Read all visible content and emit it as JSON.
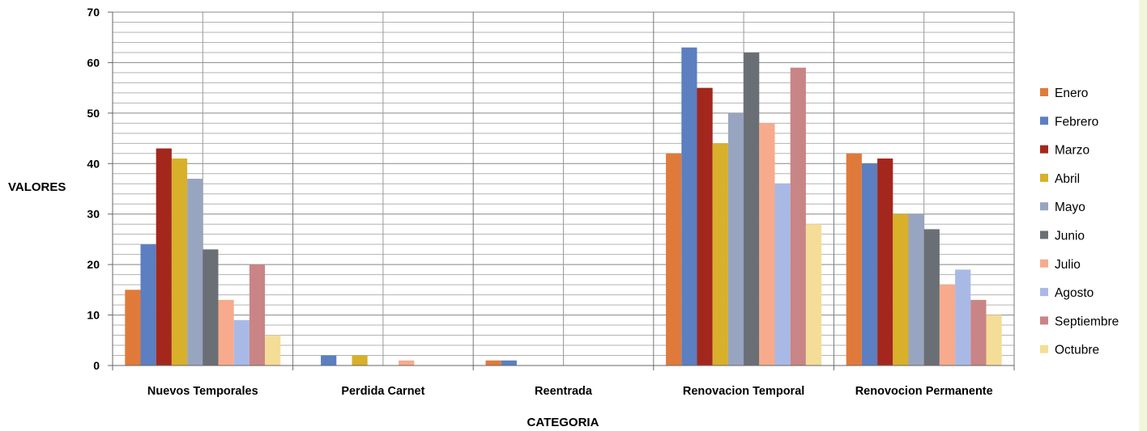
{
  "chart_data": {
    "type": "bar",
    "xlabel": "CATEGORIA",
    "ylabel": "VALORES",
    "ylim": [
      0,
      70
    ],
    "yticks": [
      0,
      10,
      20,
      30,
      40,
      50,
      60,
      70
    ],
    "grid": true,
    "legend_position": "right",
    "categories": [
      "Nuevos Temporales",
      "Perdida Carnet",
      "Reentrada",
      "Renovacion Temporal",
      "Renovocion Permanente"
    ],
    "series": [
      {
        "name": "Enero",
        "color": "#e07a3a",
        "values": [
          15,
          0,
          1,
          42,
          42
        ]
      },
      {
        "name": "Febrero",
        "color": "#5b7fc0",
        "values": [
          24,
          2,
          1,
          63,
          40
        ]
      },
      {
        "name": "Marzo",
        "color": "#a3271c",
        "values": [
          43,
          0,
          0,
          55,
          41
        ]
      },
      {
        "name": "Abril",
        "color": "#d8b02a",
        "values": [
          41,
          2,
          0,
          44,
          30
        ]
      },
      {
        "name": "Mayo",
        "color": "#98a5c0",
        "values": [
          37,
          0,
          0,
          50,
          30
        ]
      },
      {
        "name": "Junio",
        "color": "#6a6f75",
        "values": [
          23,
          0,
          0,
          62,
          27
        ]
      },
      {
        "name": "Julio",
        "color": "#f7ab8c",
        "values": [
          13,
          1,
          0,
          48,
          16
        ]
      },
      {
        "name": "Agosto",
        "color": "#a9b9e6",
        "values": [
          9,
          0,
          0,
          36,
          19
        ]
      },
      {
        "name": "Septiembre",
        "color": "#c98585",
        "values": [
          20,
          0,
          0,
          59,
          13
        ]
      },
      {
        "name": "Octubre",
        "color": "#f4dd96",
        "values": [
          6,
          0,
          0,
          28,
          10
        ]
      }
    ]
  }
}
